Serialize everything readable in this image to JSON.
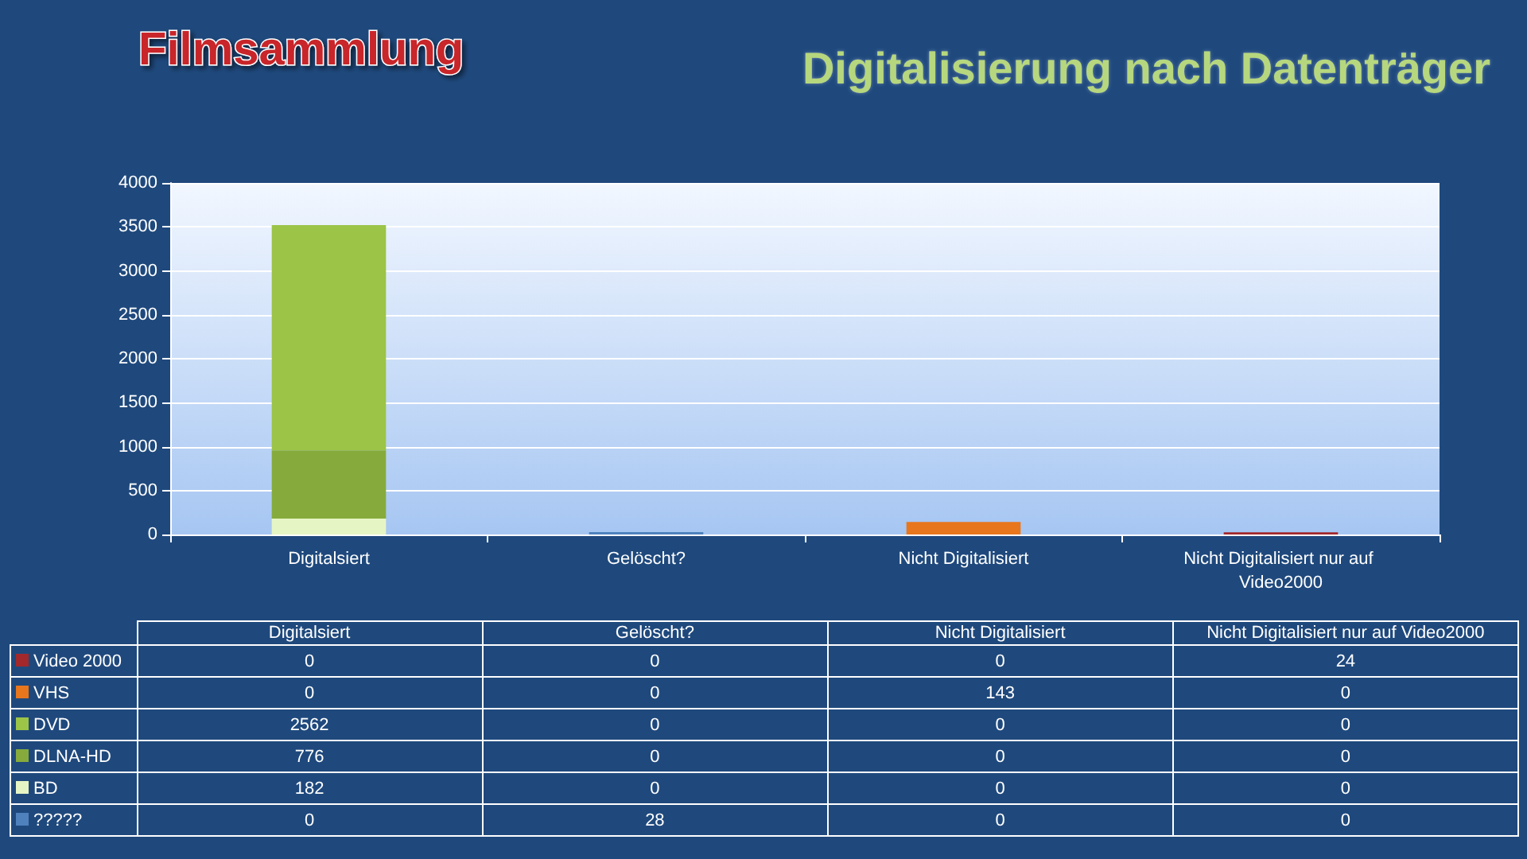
{
  "chart_data": {
    "type": "bar",
    "title": "Filmsammlung",
    "subtitle": "Digitalisierung nach Datenträger",
    "categories": [
      "Digitalsiert",
      "Gelöscht?",
      "Nicht Digitalisiert",
      "Nicht Digitalisiert nur auf Video2000"
    ],
    "stacked": true,
    "series": [
      {
        "name": "?????",
        "color": "#4f81bd",
        "values": [
          0,
          28,
          0,
          0
        ]
      },
      {
        "name": "BD",
        "color": "#e6f5c4",
        "values": [
          182,
          0,
          0,
          0
        ]
      },
      {
        "name": "DLNA-HD",
        "color": "#86ab3c",
        "values": [
          776,
          0,
          0,
          0
        ]
      },
      {
        "name": "DVD",
        "color": "#9cc447",
        "values": [
          2562,
          0,
          0,
          0
        ]
      },
      {
        "name": "VHS",
        "color": "#e8761c",
        "values": [
          0,
          0,
          143,
          0
        ]
      },
      {
        "name": "Video 2000",
        "color": "#a3282b",
        "values": [
          0,
          0,
          0,
          24
        ]
      }
    ],
    "ylim": [
      0,
      4000
    ],
    "yticks": [
      0,
      500,
      1000,
      1500,
      2000,
      2500,
      3000,
      3500,
      4000
    ],
    "grid": "y",
    "legend": "bottom",
    "data_labels": true
  }
}
